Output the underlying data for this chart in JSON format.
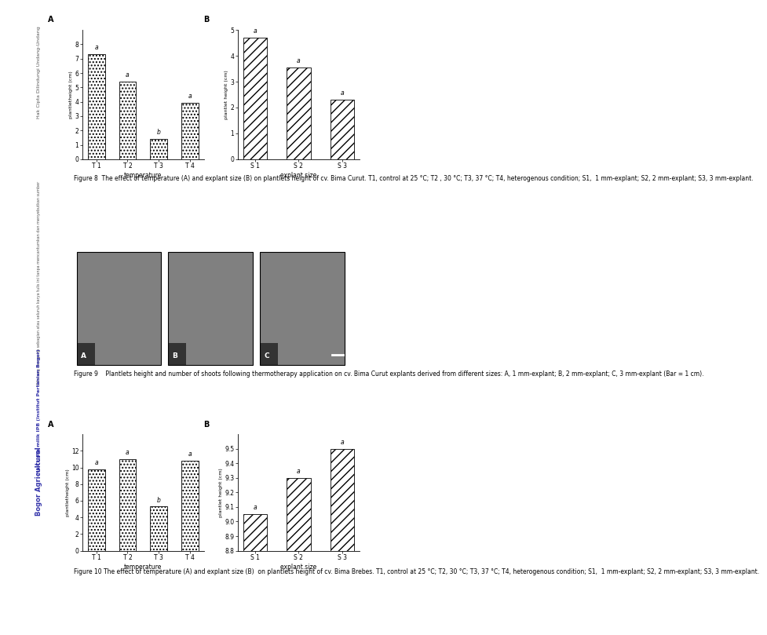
{
  "fig8_A_categories": [
    "T 1",
    "T 2",
    "T 3",
    "T 4"
  ],
  "fig8_A_values": [
    7.3,
    5.4,
    1.4,
    3.9
  ],
  "fig8_A_labels": [
    "a",
    "a",
    "b",
    "a"
  ],
  "fig8_A_ylabel": "plantletheight (cm)",
  "fig8_A_xlabel": "temperature",
  "fig8_A_ylim": [
    0,
    9
  ],
  "fig8_A_yticks": [
    0,
    1,
    2,
    3,
    4,
    5,
    6,
    7,
    8
  ],
  "fig8_A_hatch": "dots",
  "fig8_B_categories": [
    "S 1",
    "S 2",
    "S 3"
  ],
  "fig8_B_values": [
    4.7,
    3.55,
    2.3
  ],
  "fig8_B_labels": [
    "a",
    "a",
    "a"
  ],
  "fig8_B_ylabel": "plantlet height (cm)",
  "fig8_B_xlabel": "explant size",
  "fig8_B_ylim": [
    0,
    5
  ],
  "fig8_B_yticks": [
    0,
    1,
    2,
    3,
    4,
    5
  ],
  "fig8_B_hatch": "hatch",
  "fig8_caption_num": "Figure 8",
  "fig8_caption_body": "  The effect of temperature (A) and explant size (B) on plantlets height of cv. Bima Curut. T1, control at 25 °C; T2 , 30 °C; T3, 37 °C; T4, heterogenous condition; S1,  1 mm-explant; S2, 2 mm-explant; S3, 3 mm-explant.",
  "fig9_caption_num": "Figure 9",
  "fig9_caption_body": "    Plantlets height and number of shoots following thermotherapy application on cv. Bima Curut explants derived from different sizes: A, 1 mm-explant; B, 2 mm-explant; C, 3 mm-explant (Bar = 1 cm).",
  "fig10_A_categories": [
    "T 1",
    "T 2",
    "T 3",
    "T 4"
  ],
  "fig10_A_values": [
    9.8,
    11.0,
    5.3,
    10.8
  ],
  "fig10_A_labels": [
    "a",
    "a",
    "b",
    "a"
  ],
  "fig10_A_ylabel": "plantletheight (cm)",
  "fig10_A_xlabel": "temperature",
  "fig10_A_ylim": [
    0,
    14
  ],
  "fig10_A_yticks": [
    0,
    2,
    4,
    6,
    8,
    10,
    12
  ],
  "fig10_A_hatch": "dots",
  "fig10_B_categories": [
    "S 1",
    "S 2",
    "S 3"
  ],
  "fig10_B_values": [
    9.05,
    9.3,
    9.5
  ],
  "fig10_B_labels": [
    "a",
    "a",
    "a"
  ],
  "fig10_B_ylabel": "plantlet height (cm)",
  "fig10_B_xlabel": "explant size",
  "fig10_B_ylim": [
    8.8,
    9.6
  ],
  "fig10_B_yticks": [
    8.8,
    8.9,
    9.0,
    9.1,
    9.2,
    9.3,
    9.4,
    9.5
  ],
  "fig10_B_hatch": "hatch",
  "fig10_caption_num": "Figure 10",
  "fig10_caption_body": " The effect of temperature (A) and explant size (B)  on plantlets height of cv. Bima Brebes. T1, control at 25 °C; T2, 30 °C; T3, 37 °C; T4, heterogenous condition; S1,  1 mm-explant; S2, 2 mm-explant; S3, 3 mm-explant.",
  "sidebar_texts": [
    "Hak Cipta Dilindungi Undang-Undang",
    "Dilarang mengutip sebagian atau seluruh karya tulis ini tanpa mencantumkan dan menyebutkan sumber",
    "Hak cipta milik IPB (Institut Pertanian Bogor)",
    "Bogor Agricultural"
  ],
  "bg_color": "white"
}
